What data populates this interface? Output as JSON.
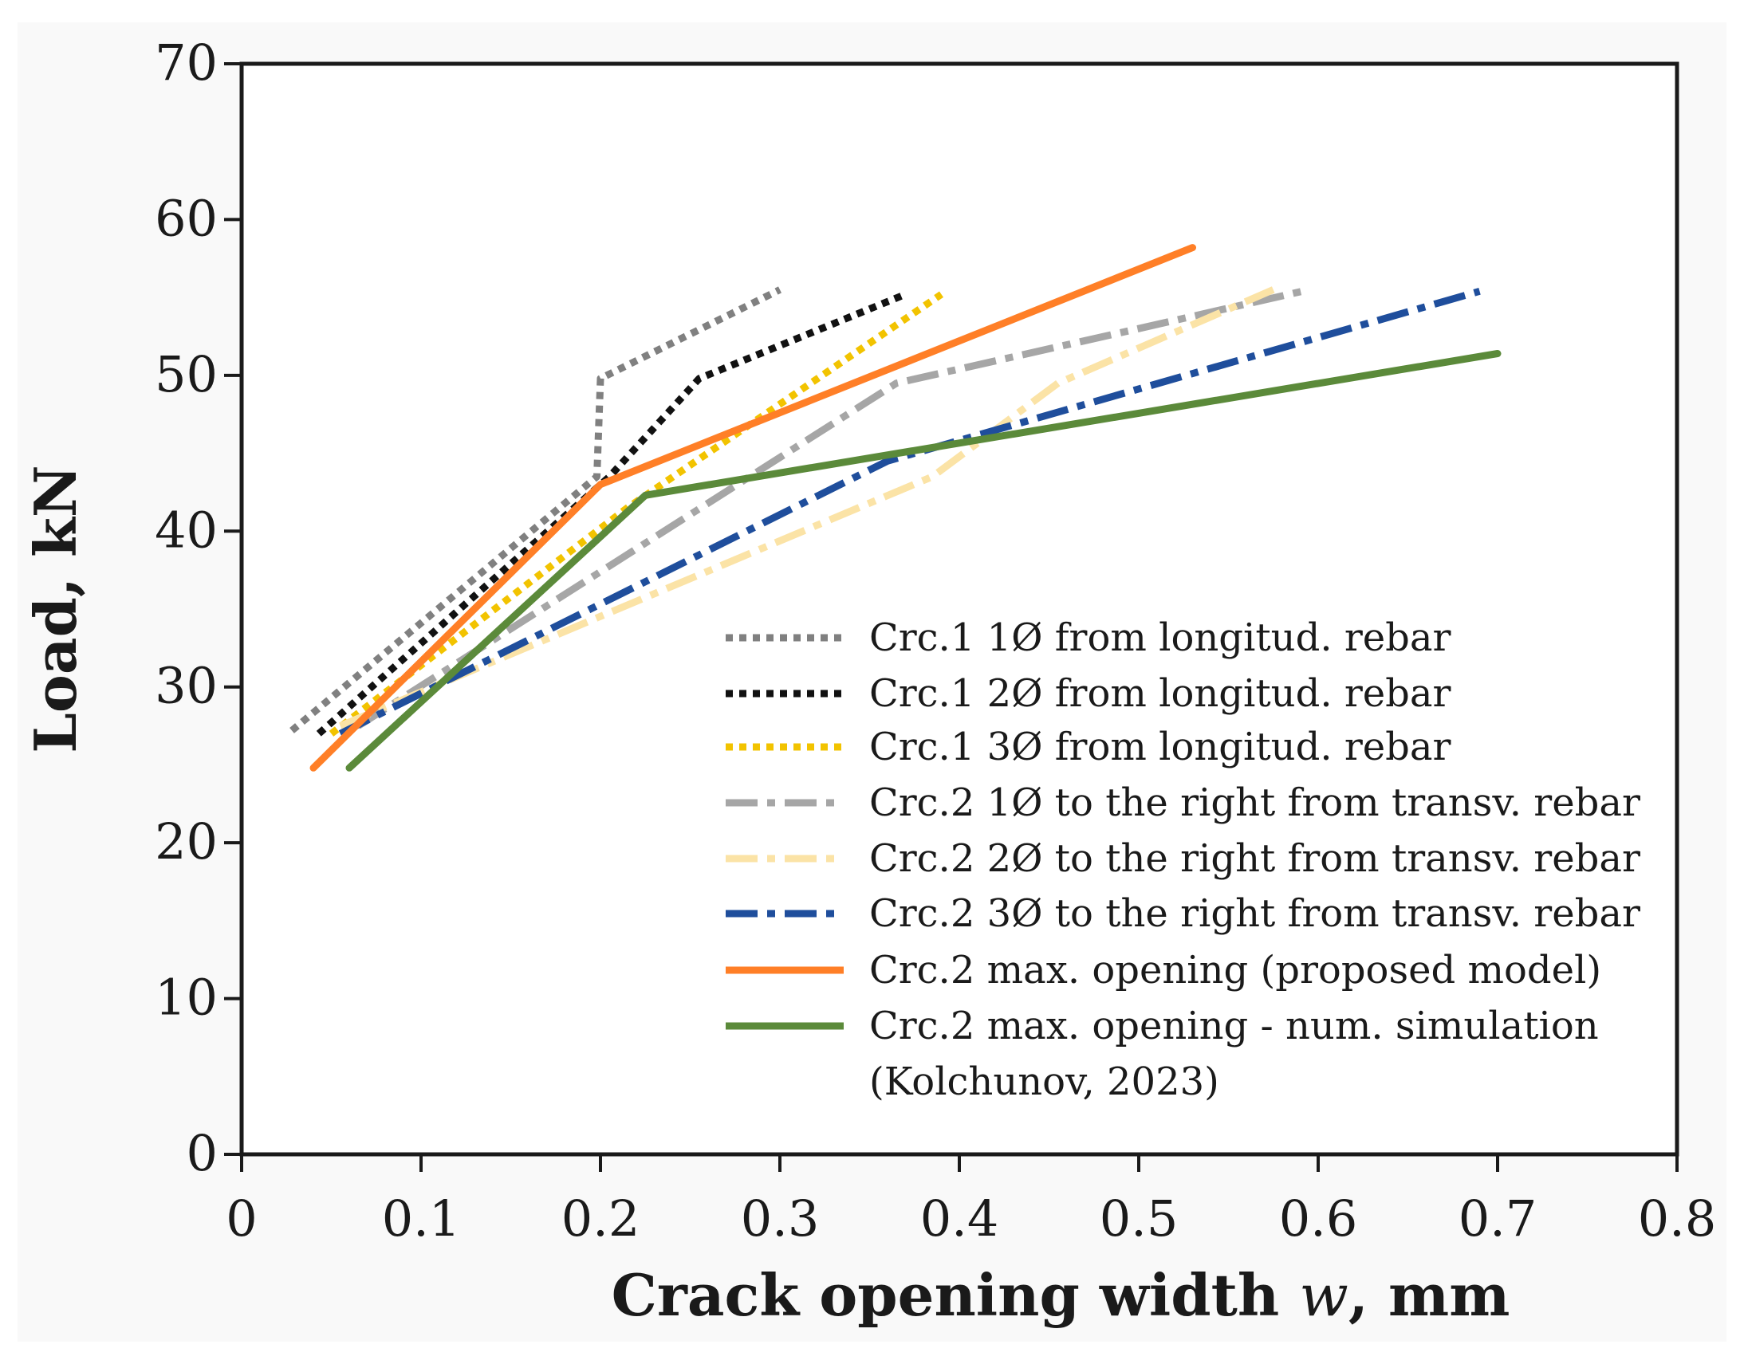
{
  "chart_data": {
    "type": "line",
    "title": "",
    "xlabel_main": "Crack opening width ",
    "xlabel_var": "w",
    "xlabel_unit": ", mm",
    "ylabel": "Load, kN",
    "xlim": [
      0,
      0.8
    ],
    "ylim": [
      0,
      70
    ],
    "x_ticks": [
      "0",
      "0.1",
      "0.2",
      "0.3",
      "0.4",
      "0.5",
      "0.6",
      "0.7",
      "0.8"
    ],
    "y_ticks": [
      "0",
      "10",
      "20",
      "30",
      "40",
      "50",
      "60",
      "70"
    ],
    "x_tick_values": [
      0,
      0.1,
      0.2,
      0.3,
      0.4,
      0.5,
      0.6,
      0.7,
      0.8
    ],
    "y_tick_values": [
      0,
      10,
      20,
      30,
      40,
      50,
      60,
      70
    ],
    "grid": false,
    "legend_position": "center-right",
    "series": [
      {
        "name": "Crc.1 1Ø from longitud. rebar",
        "color": "#808080",
        "style": "dotted",
        "points": [
          [
            0.028,
            27.2
          ],
          [
            0.198,
            43.5
          ],
          [
            0.2,
            49.8
          ],
          [
            0.3,
            55.5
          ]
        ]
      },
      {
        "name": "Crc.1 2Ø from longitud. rebar",
        "color": "#111111",
        "style": "dotted",
        "points": [
          [
            0.043,
            27.0
          ],
          [
            0.205,
            43.5
          ],
          [
            0.255,
            49.8
          ],
          [
            0.37,
            55.2
          ]
        ]
      },
      {
        "name": "Crc.1 3Ø from longitud. rebar",
        "color": "#F2C300",
        "style": "dotted",
        "points": [
          [
            0.05,
            27.0
          ],
          [
            0.215,
            41.5
          ],
          [
            0.39,
            55.2
          ]
        ]
      },
      {
        "name": "Crc.2 1Ø to the right from transv. rebar",
        "color": "#A6A6A6",
        "style": "dashdot",
        "points": [
          [
            0.065,
            27.5
          ],
          [
            0.365,
            49.5
          ],
          [
            0.5,
            53.0
          ],
          [
            0.595,
            55.5
          ]
        ]
      },
      {
        "name": "Crc.2 2Ø to the right from transv. rebar",
        "color": "#FBE3A6",
        "style": "dashdot",
        "points": [
          [
            0.055,
            27.5
          ],
          [
            0.385,
            43.5
          ],
          [
            0.455,
            49.5
          ],
          [
            0.575,
            55.5
          ]
        ]
      },
      {
        "name": "Crc.2 3Ø to the right from transv. rebar",
        "color": "#1F4E9C",
        "style": "dashdot",
        "points": [
          [
            0.055,
            27.0
          ],
          [
            0.36,
            44.5
          ],
          [
            0.69,
            55.4
          ]
        ]
      },
      {
        "name": "Crc.2 max. opening (proposed model)",
        "color": "#FF7F27",
        "style": "solid",
        "points": [
          [
            0.04,
            24.8
          ],
          [
            0.2,
            43.0
          ],
          [
            0.53,
            58.2
          ]
        ]
      },
      {
        "name": "Crc.2 max. opening - num. simulation",
        "color": "#5B8A3A",
        "style": "solid",
        "points": [
          [
            0.06,
            24.8
          ],
          [
            0.225,
            42.3
          ],
          [
            0.7,
            51.4
          ]
        ]
      }
    ],
    "legend_note": "(Kolchunov, 2023)"
  }
}
